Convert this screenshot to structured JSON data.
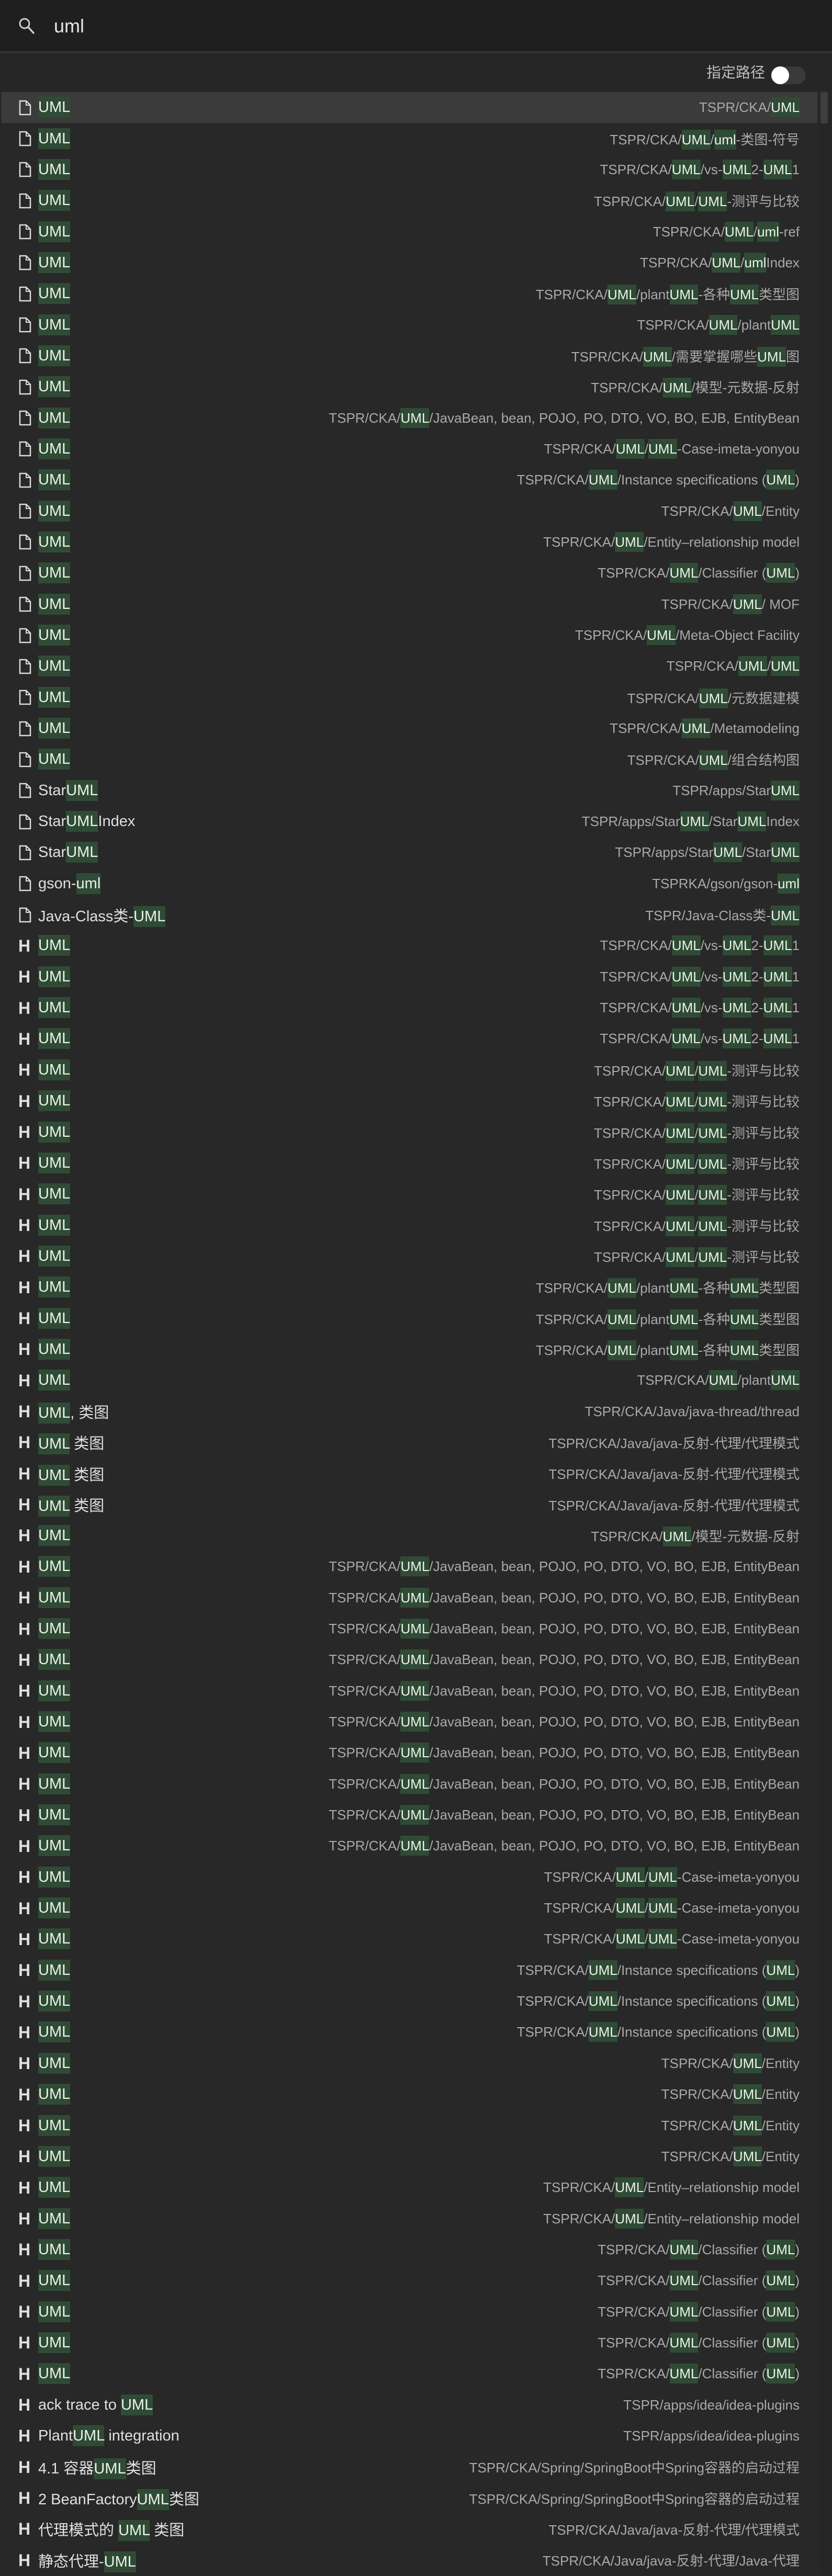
{
  "search": {
    "query": "uml",
    "icon": "search-icon"
  },
  "options": {
    "path_toggle_label": "指定路径",
    "path_toggle_on": false
  },
  "colors": {
    "highlight_bg": "#2f4b36",
    "selected_row": "#3b3b3b",
    "background": "#282828"
  },
  "results": [
    [
      "file",
      "UML",
      "TSPR/CKA/UML"
    ],
    [
      "file",
      "UML",
      "TSPR/CKA/UML/uml-类图-符号"
    ],
    [
      "file",
      "UML",
      "TSPR/CKA/UML/vs-UML2-UML1"
    ],
    [
      "file",
      "UML",
      "TSPR/CKA/UML/UML-测评与比较"
    ],
    [
      "file",
      "UML",
      "TSPR/CKA/UML/uml-ref"
    ],
    [
      "file",
      "UML",
      "TSPR/CKA/UML/umlIndex"
    ],
    [
      "file",
      "UML",
      "TSPR/CKA/UML/plantUML-各种UML类型图"
    ],
    [
      "file",
      "UML",
      "TSPR/CKA/UML/plantUML"
    ],
    [
      "file",
      "UML",
      "TSPR/CKA/UML/需要掌握哪些UML图"
    ],
    [
      "file",
      "UML",
      "TSPR/CKA/UML/模型-元数据-反射"
    ],
    [
      "file",
      "UML",
      "TSPR/CKA/UML/JavaBean, bean, POJO, PO, DTO, VO, BO, EJB, EntityBean"
    ],
    [
      "file",
      "UML",
      "TSPR/CKA/UML/UML-Case-imeta-yonyou"
    ],
    [
      "file",
      "UML",
      "TSPR/CKA/UML/Instance specifications (UML)"
    ],
    [
      "file",
      "UML",
      "TSPR/CKA/UML/Entity"
    ],
    [
      "file",
      "UML",
      "TSPR/CKA/UML/Entity–relationship model"
    ],
    [
      "file",
      "UML",
      "TSPR/CKA/UML/Classifier (UML)"
    ],
    [
      "file",
      "UML",
      "TSPR/CKA/UML/ MOF"
    ],
    [
      "file",
      "UML",
      "TSPR/CKA/UML/Meta-Object Facility"
    ],
    [
      "file",
      "UML",
      "TSPR/CKA/UML/UML"
    ],
    [
      "file",
      "UML",
      "TSPR/CKA/UML/元数据建模"
    ],
    [
      "file",
      "UML",
      "TSPR/CKA/UML/Metamodeling"
    ],
    [
      "file",
      "UML",
      "TSPR/CKA/UML/组合结构图"
    ],
    [
      "file",
      "StarUML",
      "TSPR/apps/StarUML"
    ],
    [
      "file",
      "StarUMLIndex",
      "TSPR/apps/StarUML/StarUMLIndex"
    ],
    [
      "file",
      "StarUML",
      "TSPR/apps/StarUML/StarUML"
    ],
    [
      "file",
      "gson-uml",
      "TSPRKA/gson/gson-uml"
    ],
    [
      "file",
      "Java-Class类-UML",
      "TSPR/Java-Class类-UML"
    ],
    [
      "heading",
      "UML",
      "TSPR/CKA/UML/vs-UML2-UML1"
    ],
    [
      "heading",
      "UML",
      "TSPR/CKA/UML/vs-UML2-UML1"
    ],
    [
      "heading",
      "UML",
      "TSPR/CKA/UML/vs-UML2-UML1"
    ],
    [
      "heading",
      "UML",
      "TSPR/CKA/UML/vs-UML2-UML1"
    ],
    [
      "heading",
      "UML",
      "TSPR/CKA/UML/UML-测评与比较"
    ],
    [
      "heading",
      "UML",
      "TSPR/CKA/UML/UML-测评与比较"
    ],
    [
      "heading",
      "UML",
      "TSPR/CKA/UML/UML-测评与比较"
    ],
    [
      "heading",
      "UML",
      "TSPR/CKA/UML/UML-测评与比较"
    ],
    [
      "heading",
      "UML",
      "TSPR/CKA/UML/UML-测评与比较"
    ],
    [
      "heading",
      "UML",
      "TSPR/CKA/UML/UML-测评与比较"
    ],
    [
      "heading",
      "UML",
      "TSPR/CKA/UML/UML-测评与比较"
    ],
    [
      "heading",
      "UML",
      "TSPR/CKA/UML/plantUML-各种UML类型图"
    ],
    [
      "heading",
      "UML",
      "TSPR/CKA/UML/plantUML-各种UML类型图"
    ],
    [
      "heading",
      "UML",
      "TSPR/CKA/UML/plantUML-各种UML类型图"
    ],
    [
      "heading",
      "UML",
      "TSPR/CKA/UML/plantUML"
    ],
    [
      "heading",
      "UML, 类图",
      "TSPR/CKA/Java/java-thread/thread"
    ],
    [
      "heading",
      "UML 类图",
      "TSPR/CKA/Java/java-反射-代理/代理模式"
    ],
    [
      "heading",
      "UML 类图",
      "TSPR/CKA/Java/java-反射-代理/代理模式"
    ],
    [
      "heading",
      "UML 类图",
      "TSPR/CKA/Java/java-反射-代理/代理模式"
    ],
    [
      "heading",
      "UML",
      "TSPR/CKA/UML/模型-元数据-反射"
    ],
    [
      "heading",
      "UML",
      "TSPR/CKA/UML/JavaBean, bean, POJO, PO, DTO, VO, BO, EJB, EntityBean"
    ],
    [
      "heading",
      "UML",
      "TSPR/CKA/UML/JavaBean, bean, POJO, PO, DTO, VO, BO, EJB, EntityBean"
    ],
    [
      "heading",
      "UML",
      "TSPR/CKA/UML/JavaBean, bean, POJO, PO, DTO, VO, BO, EJB, EntityBean"
    ],
    [
      "heading",
      "UML",
      "TSPR/CKA/UML/JavaBean, bean, POJO, PO, DTO, VO, BO, EJB, EntityBean"
    ],
    [
      "heading",
      "UML",
      "TSPR/CKA/UML/JavaBean, bean, POJO, PO, DTO, VO, BO, EJB, EntityBean"
    ],
    [
      "heading",
      "UML",
      "TSPR/CKA/UML/JavaBean, bean, POJO, PO, DTO, VO, BO, EJB, EntityBean"
    ],
    [
      "heading",
      "UML",
      "TSPR/CKA/UML/JavaBean, bean, POJO, PO, DTO, VO, BO, EJB, EntityBean"
    ],
    [
      "heading",
      "UML",
      "TSPR/CKA/UML/JavaBean, bean, POJO, PO, DTO, VO, BO, EJB, EntityBean"
    ],
    [
      "heading",
      "UML",
      "TSPR/CKA/UML/JavaBean, bean, POJO, PO, DTO, VO, BO, EJB, EntityBean"
    ],
    [
      "heading",
      "UML",
      "TSPR/CKA/UML/JavaBean, bean, POJO, PO, DTO, VO, BO, EJB, EntityBean"
    ],
    [
      "heading",
      "UML",
      "TSPR/CKA/UML/UML-Case-imeta-yonyou"
    ],
    [
      "heading",
      "UML",
      "TSPR/CKA/UML/UML-Case-imeta-yonyou"
    ],
    [
      "heading",
      "UML",
      "TSPR/CKA/UML/UML-Case-imeta-yonyou"
    ],
    [
      "heading",
      "UML",
      "TSPR/CKA/UML/Instance specifications (UML)"
    ],
    [
      "heading",
      "UML",
      "TSPR/CKA/UML/Instance specifications (UML)"
    ],
    [
      "heading",
      "UML",
      "TSPR/CKA/UML/Instance specifications (UML)"
    ],
    [
      "heading",
      "UML",
      "TSPR/CKA/UML/Entity"
    ],
    [
      "heading",
      "UML",
      "TSPR/CKA/UML/Entity"
    ],
    [
      "heading",
      "UML",
      "TSPR/CKA/UML/Entity"
    ],
    [
      "heading",
      "UML",
      "TSPR/CKA/UML/Entity"
    ],
    [
      "heading",
      "UML",
      "TSPR/CKA/UML/Entity–relationship model"
    ],
    [
      "heading",
      "UML",
      "TSPR/CKA/UML/Entity–relationship model"
    ],
    [
      "heading",
      "UML",
      "TSPR/CKA/UML/Classifier (UML)"
    ],
    [
      "heading",
      "UML",
      "TSPR/CKA/UML/Classifier (UML)"
    ],
    [
      "heading",
      "UML",
      "TSPR/CKA/UML/Classifier (UML)"
    ],
    [
      "heading",
      "UML",
      "TSPR/CKA/UML/Classifier (UML)"
    ],
    [
      "heading",
      "UML",
      "TSPR/CKA/UML/Classifier (UML)"
    ],
    [
      "heading",
      "ack trace to UML",
      "TSPR/apps/idea/idea-plugins"
    ],
    [
      "heading",
      "PlantUML integration",
      "TSPR/apps/idea/idea-plugins"
    ],
    [
      "heading",
      "4.1 容器UML类图",
      "TSPR/CKA/Spring/SpringBoot中Spring容器的启动过程"
    ],
    [
      "heading",
      "2 BeanFactoryUML类图",
      "TSPR/CKA/Spring/SpringBoot中Spring容器的启动过程"
    ],
    [
      "heading",
      "代理模式的 UML 类图",
      "TSPR/CKA/Java/java-反射-代理/代理模式"
    ],
    [
      "heading",
      "静态代理-UML",
      "TSPR/CKA/Java/java-反射-代理/Java-代理"
    ]
  ]
}
